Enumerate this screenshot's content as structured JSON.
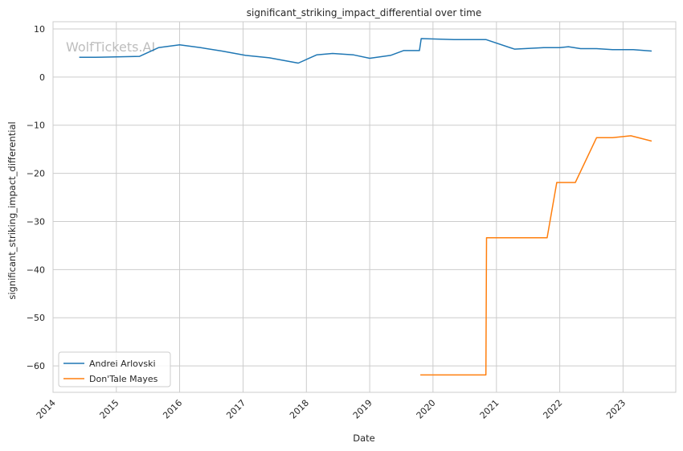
{
  "chart_data": {
    "type": "line",
    "title": "significant_striking_impact_differential over time",
    "xlabel": "Date",
    "ylabel": "significant_striking_impact_differential",
    "watermark": "WolfTickets.AI",
    "x_ticks": [
      "2014",
      "2015",
      "2016",
      "2017",
      "2018",
      "2019",
      "2020",
      "2021",
      "2022",
      "2023"
    ],
    "y_ticks": [
      10,
      0,
      -10,
      -20,
      -30,
      -40,
      -50,
      -60
    ],
    "y_tick_labels": [
      "10",
      "0",
      "−10",
      "−20",
      "−30",
      "−40",
      "−50",
      "−60"
    ],
    "xlim": [
      "2014-01-01",
      "2023-11-01"
    ],
    "ylim": [
      -65.5,
      11.5
    ],
    "grid": true,
    "legend_position": "lower-left",
    "series": [
      {
        "name": "Andrei Arlovski",
        "color": "#1f77b4",
        "points": [
          [
            "2014-06-01",
            4.1
          ],
          [
            "2014-09-01",
            4.1
          ],
          [
            "2015-05-15",
            4.3
          ],
          [
            "2015-09-01",
            6.1
          ],
          [
            "2016-01-01",
            6.7
          ],
          [
            "2016-05-01",
            6.1
          ],
          [
            "2016-09-01",
            5.4
          ],
          [
            "2017-01-15",
            4.5
          ],
          [
            "2017-06-01",
            4.0
          ],
          [
            "2017-11-15",
            2.9
          ],
          [
            "2018-03-01",
            4.6
          ],
          [
            "2018-06-01",
            4.9
          ],
          [
            "2018-10-01",
            4.6
          ],
          [
            "2019-01-01",
            3.9
          ],
          [
            "2019-05-01",
            4.5
          ],
          [
            "2019-07-15",
            5.5
          ],
          [
            "2019-10-15",
            5.5
          ],
          [
            "2019-10-25",
            8.0
          ],
          [
            "2020-05-01",
            7.8
          ],
          [
            "2020-11-01",
            7.8
          ],
          [
            "2021-04-15",
            5.8
          ],
          [
            "2021-10-01",
            6.1
          ],
          [
            "2022-01-01",
            6.1
          ],
          [
            "2022-02-20",
            6.3
          ],
          [
            "2022-05-01",
            5.9
          ],
          [
            "2022-08-01",
            5.9
          ],
          [
            "2022-11-01",
            5.7
          ],
          [
            "2023-03-01",
            5.7
          ],
          [
            "2023-06-15",
            5.4
          ]
        ]
      },
      {
        "name": "Don'Tale Mayes",
        "color": "#ff7f0e",
        "points": [
          [
            "2019-10-20",
            -61.9
          ],
          [
            "2020-11-01",
            -61.9
          ],
          [
            "2020-11-05",
            -33.4
          ],
          [
            "2021-10-20",
            -33.4
          ],
          [
            "2021-12-15",
            -21.9
          ],
          [
            "2022-04-01",
            -21.9
          ],
          [
            "2022-08-01",
            -12.6
          ],
          [
            "2022-11-01",
            -12.6
          ],
          [
            "2023-02-15",
            -12.2
          ],
          [
            "2023-06-15",
            -13.3
          ]
        ]
      }
    ]
  }
}
